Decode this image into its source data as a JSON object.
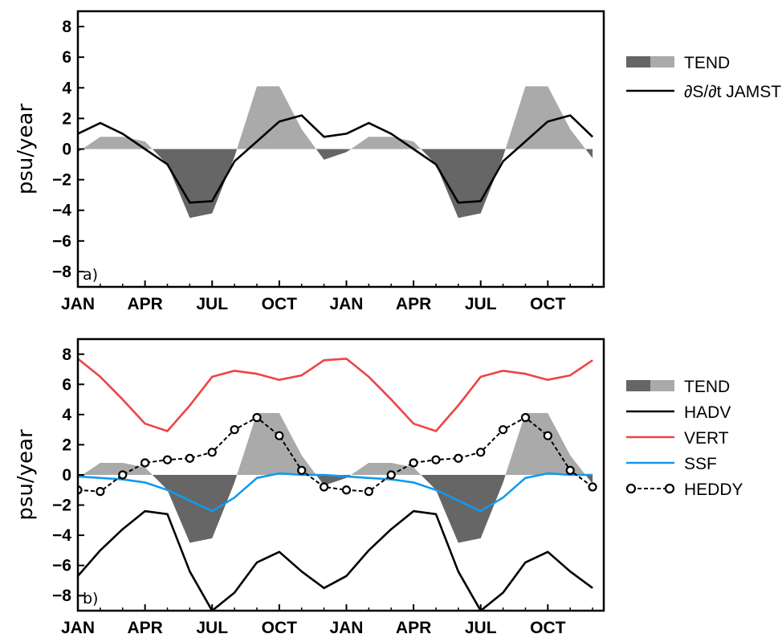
{
  "chart_data": [
    {
      "panel": "a",
      "type": "line",
      "panel_tag": "a)",
      "ylabel": "psu/year",
      "ylim": [
        -9,
        9
      ],
      "yticks": [
        -8,
        -6,
        -4,
        -2,
        0,
        2,
        4,
        6,
        8
      ],
      "x_tick_labels": [
        "JAN",
        "APR",
        "JUL",
        "OCT",
        "JAN",
        "APR",
        "JUL",
        "OCT"
      ],
      "x_tick_months": [
        0,
        3,
        6,
        9,
        12,
        15,
        18,
        21
      ],
      "x_months": [
        0,
        1,
        2,
        3,
        4,
        5,
        6,
        7,
        8,
        9,
        10,
        11,
        12,
        13,
        14,
        15,
        16,
        17,
        18,
        19,
        20,
        21,
        22,
        23,
        24
      ],
      "series": [
        {
          "name": "TEND",
          "kind": "area",
          "pos_color": "#aaaaaa",
          "neg_color": "#666666",
          "values": [
            -0.2,
            0.8,
            0.8,
            0.5,
            -1.0,
            -4.5,
            -4.2,
            -0.5,
            4.1,
            4.1,
            1.3,
            -0.7,
            -0.2,
            0.8,
            0.8,
            0.5,
            -1.0,
            -4.5,
            -4.2,
            -0.5,
            4.1,
            4.1,
            1.3,
            -0.6
          ]
        },
        {
          "name": "∂S/∂t JAMSTEC",
          "kind": "line",
          "color": "#000000",
          "values": [
            1.0,
            1.7,
            1.0,
            0.0,
            -1.0,
            -3.5,
            -3.4,
            -0.8,
            0.5,
            1.8,
            2.2,
            0.8,
            1.0,
            1.7,
            1.0,
            0.0,
            -1.0,
            -3.5,
            -3.4,
            -0.8,
            0.5,
            1.8,
            2.2,
            0.8
          ]
        }
      ],
      "legend": [
        {
          "label": "TEND",
          "symbol": "area"
        },
        {
          "label": "∂S/∂t JAMSTEC",
          "symbol": "line",
          "color": "#000000"
        }
      ]
    },
    {
      "panel": "b",
      "type": "line",
      "panel_tag": "b)",
      "ylabel": "psu/year",
      "ylim": [
        -9,
        9
      ],
      "yticks": [
        -8,
        -6,
        -4,
        -2,
        0,
        2,
        4,
        6,
        8
      ],
      "x_tick_labels": [
        "JAN",
        "APR",
        "JUL",
        "OCT",
        "JAN",
        "APR",
        "JUL",
        "OCT"
      ],
      "x_tick_months": [
        0,
        3,
        6,
        9,
        12,
        15,
        18,
        21
      ],
      "series": [
        {
          "name": "TEND",
          "kind": "area",
          "pos_color": "#aaaaaa",
          "neg_color": "#666666",
          "values": [
            -0.2,
            0.8,
            0.8,
            0.5,
            -1.0,
            -4.5,
            -4.2,
            -0.5,
            4.1,
            4.1,
            1.3,
            -0.7,
            -0.2,
            0.8,
            0.8,
            0.5,
            -1.0,
            -4.5,
            -4.2,
            -0.5,
            4.1,
            4.1,
            1.3,
            -0.6
          ]
        },
        {
          "name": "HADV",
          "kind": "line",
          "color": "#000000",
          "values": [
            -6.7,
            -5.0,
            -3.6,
            -2.4,
            -2.6,
            -6.4,
            -9.0,
            -7.8,
            -5.8,
            -5.1,
            -6.4,
            -7.5,
            -6.7,
            -5.0,
            -3.6,
            -2.4,
            -2.6,
            -6.4,
            -9.0,
            -7.8,
            -5.8,
            -5.1,
            -6.4,
            -7.5
          ]
        },
        {
          "name": "VERT",
          "kind": "line",
          "color": "#ee4444",
          "values": [
            7.7,
            6.5,
            5.0,
            3.4,
            2.9,
            4.6,
            6.5,
            6.9,
            6.7,
            6.3,
            6.6,
            7.6,
            7.7,
            6.5,
            5.0,
            3.4,
            2.9,
            4.6,
            6.5,
            6.9,
            6.7,
            6.3,
            6.6,
            7.6
          ]
        },
        {
          "name": "SSF",
          "kind": "line",
          "color": "#1199ee",
          "values": [
            -0.1,
            -0.2,
            -0.3,
            -0.5,
            -1.0,
            -1.7,
            -2.4,
            -1.5,
            -0.2,
            0.1,
            0.0,
            0.0,
            -0.1,
            -0.2,
            -0.3,
            -0.5,
            -1.0,
            -1.7,
            -2.4,
            -1.5,
            -0.2,
            0.1,
            0.0,
            0.0
          ]
        },
        {
          "name": "HEDDY",
          "kind": "dashed-markers",
          "color": "#000000",
          "values": [
            -1.0,
            -1.1,
            0.0,
            0.8,
            1.0,
            1.1,
            1.5,
            3.0,
            3.8,
            2.6,
            0.3,
            -0.8,
            -1.0,
            -1.1,
            0.0,
            0.8,
            1.0,
            1.1,
            1.5,
            3.0,
            3.8,
            2.6,
            0.3,
            -0.8
          ]
        }
      ],
      "legend": [
        {
          "label": "TEND",
          "symbol": "area"
        },
        {
          "label": "HADV",
          "symbol": "line",
          "color": "#000000"
        },
        {
          "label": "VERT",
          "symbol": "line",
          "color": "#ee4444"
        },
        {
          "label": "SSF",
          "symbol": "line",
          "color": "#1199ee"
        },
        {
          "label": "HEDDY",
          "symbol": "dashed-markers",
          "color": "#000000"
        }
      ]
    }
  ]
}
